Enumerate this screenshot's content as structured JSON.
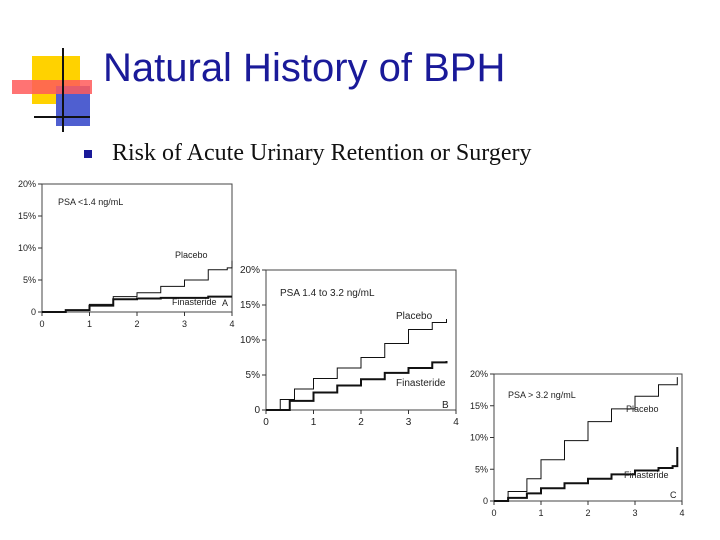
{
  "slide": {
    "title": "Natural History of BPH",
    "bullet": "Risk of Acute Urinary Retention or Surgery",
    "colors": {
      "title": "#1a1a99",
      "deco_yellow": "#ffd200",
      "deco_red": "#ff4040",
      "deco_blue": "#4f5fd0"
    }
  },
  "chart_data": [
    {
      "type": "line",
      "annotation": "PSA <1.4 ng/mL",
      "panel_label": "A",
      "xlim": [
        0,
        4
      ],
      "ylim": [
        0,
        20
      ],
      "x_ticks": [
        0,
        1,
        2,
        3,
        4
      ],
      "x_tick_labels": [
        "0",
        "1",
        "2",
        "3",
        "4"
      ],
      "y_ticks": [
        0,
        5,
        10,
        15,
        20
      ],
      "y_tick_labels": [
        "0",
        "5%",
        "10%",
        "15%",
        "20%"
      ],
      "series": [
        {
          "name": "Placebo",
          "x": [
            0,
            0.5,
            1,
            1.5,
            2,
            2.5,
            3,
            3.5,
            3.9,
            4.0
          ],
          "y": [
            0,
            0.3,
            1.2,
            2.4,
            3.0,
            4.0,
            5.0,
            6.6,
            6.9,
            8.0
          ]
        },
        {
          "name": "Finasteride",
          "x": [
            0,
            0.5,
            1,
            1.5,
            2,
            2.5,
            3,
            3.5,
            3.9,
            4.0
          ],
          "y": [
            0,
            0.3,
            1.0,
            2.0,
            2.1,
            2.2,
            2.2,
            2.4,
            2.4,
            2.4
          ]
        }
      ]
    },
    {
      "type": "line",
      "annotation": "PSA 1.4 to 3.2 ng/mL",
      "panel_label": "B",
      "xlim": [
        0,
        4
      ],
      "ylim": [
        0,
        20
      ],
      "x_ticks": [
        0,
        1,
        2,
        3,
        4
      ],
      "x_tick_labels": [
        "0",
        "1",
        "2",
        "3",
        "4"
      ],
      "y_ticks": [
        0,
        5,
        10,
        15,
        20
      ],
      "y_tick_labels": [
        "0",
        "5%",
        "10%",
        "15%",
        "20%"
      ],
      "series": [
        {
          "name": "Placebo",
          "x": [
            0,
            0.3,
            0.6,
            1,
            1.5,
            2,
            2.5,
            3,
            3.5,
            3.8
          ],
          "y": [
            0,
            1.5,
            3.0,
            4.5,
            6.0,
            7.5,
            9.5,
            11.5,
            12.5,
            13.0
          ]
        },
        {
          "name": "Finasteride",
          "x": [
            0,
            0.5,
            1,
            1.5,
            2,
            2.5,
            3,
            3.5,
            3.8
          ],
          "y": [
            0,
            1.3,
            2.5,
            3.5,
            4.4,
            5.3,
            6.0,
            6.8,
            7.0
          ]
        }
      ]
    },
    {
      "type": "line",
      "annotation": "PSA > 3.2 ng/mL",
      "panel_label": "C",
      "xlim": [
        0,
        4
      ],
      "ylim": [
        0,
        20
      ],
      "x_ticks": [
        0,
        1,
        2,
        3,
        4
      ],
      "x_tick_labels": [
        "0",
        "1",
        "2",
        "3",
        "4"
      ],
      "y_ticks": [
        0,
        5,
        10,
        15,
        20
      ],
      "y_tick_labels": [
        "0",
        "5%",
        "10%",
        "15%",
        "20%"
      ],
      "series": [
        {
          "name": "Placebo",
          "x": [
            0,
            0.3,
            0.7,
            1,
            1.5,
            2,
            2.5,
            3,
            3.5,
            3.9
          ],
          "y": [
            0,
            1.5,
            3.5,
            6.5,
            9.5,
            12.5,
            14.5,
            16.5,
            18.3,
            19.5
          ]
        },
        {
          "name": "Finasteride",
          "x": [
            0,
            0.3,
            0.7,
            1,
            1.5,
            2,
            2.5,
            3,
            3.5,
            3.8,
            3.9
          ],
          "y": [
            0,
            0.5,
            1.2,
            2.0,
            2.8,
            3.5,
            4.2,
            4.8,
            5.2,
            5.5,
            8.5
          ]
        }
      ]
    }
  ]
}
